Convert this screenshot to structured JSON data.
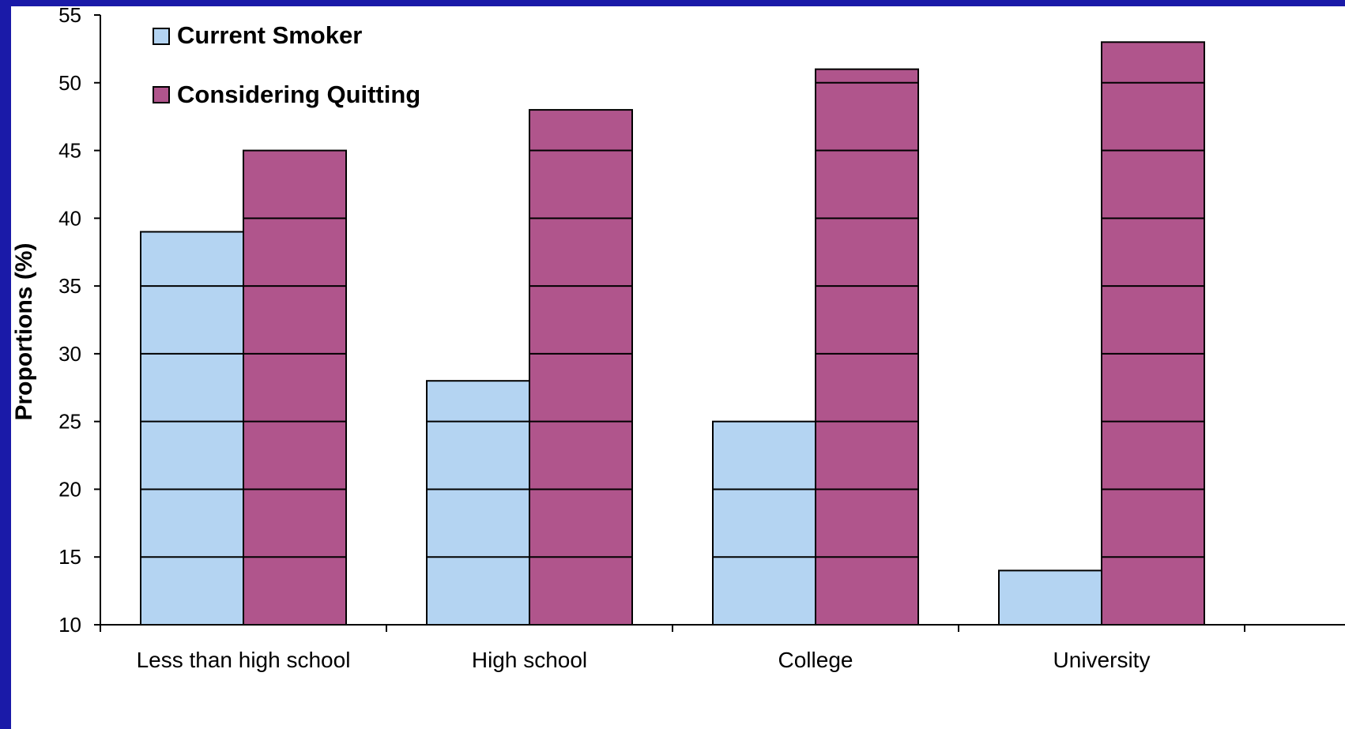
{
  "chart_data": {
    "type": "bar",
    "title": "",
    "xlabel": "",
    "ylabel": "Proportions (%)",
    "ylim": [
      10,
      55
    ],
    "yticks": [
      10,
      15,
      20,
      25,
      30,
      35,
      40,
      45,
      50,
      55
    ],
    "grid": false,
    "grid_band_lines_inside_bars": true,
    "legend_position": "top-left",
    "categories": [
      "Less than high school",
      "High school",
      "College",
      "University"
    ],
    "series": [
      {
        "name": "Current Smoker",
        "color": "#b4d4f2",
        "values": [
          39,
          28,
          25,
          14
        ]
      },
      {
        "name": "Considering Quitting",
        "color": "#b0558c",
        "values": [
          45,
          48,
          51,
          53
        ]
      }
    ]
  },
  "colors": {
    "background_frame": "#1a1aa8",
    "plot_background": "#ffffff",
    "axis": "#000000"
  }
}
